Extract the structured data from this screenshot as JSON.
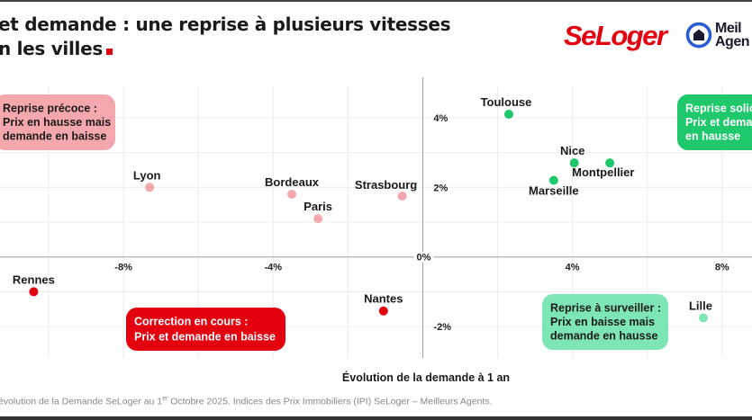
{
  "header": {
    "title_line1": "et demande : une reprise à plusieurs vitesses",
    "title_line2": "n les villes",
    "accent": "#e3000f"
  },
  "logos": {
    "seloger": "SeLoger",
    "meilleurs_agents": [
      "Meil",
      "Agen"
    ],
    "meilleurs_agents_icon": "house-in-circle-icon"
  },
  "footnote": {
    "before_sup": "évolution de la Demande SeLoger au 1",
    "sup": "er",
    "after_sup": " Octobre 2025. Indices des Prix Immobiliers (IPI) SeLoger – Meilleurs Agents."
  },
  "chart_data": {
    "type": "scatter",
    "xlabel": "Évolution de la demande à 1 an",
    "ylabel": "",
    "xlim": [
      -11.3,
      8.8
    ],
    "ylim": [
      -2.9,
      4.9
    ],
    "x_ticks": [
      {
        "v": -8,
        "label": "-8%"
      },
      {
        "v": -4,
        "label": "-4%"
      },
      {
        "v": 4,
        "label": "4%"
      },
      {
        "v": 8,
        "label": "8%"
      }
    ],
    "y_ticks": [
      {
        "v": 4,
        "label": "4%"
      },
      {
        "v": 2,
        "label": "2%"
      },
      {
        "v": -2,
        "label": "-2%"
      }
    ],
    "origin_label": "0%",
    "grid": true,
    "colors": {
      "early": "#f4a7ac",
      "solid": "#1ec86b",
      "correction": "#e3000f",
      "watch": "#7ee6b4"
    },
    "quadrants": [
      {
        "key": "early",
        "lines": [
          "Reprise précoce :",
          "Prix en hausse mais",
          "demande en baisse"
        ],
        "text_color": "#1a1a1a"
      },
      {
        "key": "solid",
        "lines": [
          "Reprise solic",
          "Prix et dema",
          "en hausse"
        ],
        "text_color": "#ffffff"
      },
      {
        "key": "correction",
        "lines": [
          "Correction en cours :",
          "Prix et demande en baisse"
        ],
        "text_color": "#ffffff"
      },
      {
        "key": "watch",
        "lines": [
          "Reprise à surveiller :",
          "Prix en baisse mais",
          "demande en hausse"
        ],
        "text_color": "#1a1a1a"
      }
    ],
    "points": [
      {
        "name": "Toulouse",
        "x": 2.3,
        "y": 4.1,
        "group": "solid"
      },
      {
        "name": "Nice",
        "x": 4.05,
        "y": 2.7,
        "group": "solid"
      },
      {
        "name": "Montpellier",
        "x": 5.0,
        "y": 2.7,
        "group": "solid"
      },
      {
        "name": "Marseille",
        "x": 3.5,
        "y": 2.2,
        "group": "solid"
      },
      {
        "name": "Strasbourg",
        "x": -0.55,
        "y": 1.75,
        "group": "early"
      },
      {
        "name": "Bordeaux",
        "x": -3.5,
        "y": 1.8,
        "group": "early"
      },
      {
        "name": "Paris",
        "x": -2.8,
        "y": 1.1,
        "group": "early"
      },
      {
        "name": "Lyon",
        "x": -7.3,
        "y": 2.0,
        "group": "early"
      },
      {
        "name": "Rennes",
        "x": -10.4,
        "y": -1.0,
        "group": "correction"
      },
      {
        "name": "Nantes",
        "x": -1.05,
        "y": -1.55,
        "group": "correction"
      },
      {
        "name": "Lille",
        "x": 7.5,
        "y": -1.75,
        "group": "watch"
      }
    ]
  }
}
